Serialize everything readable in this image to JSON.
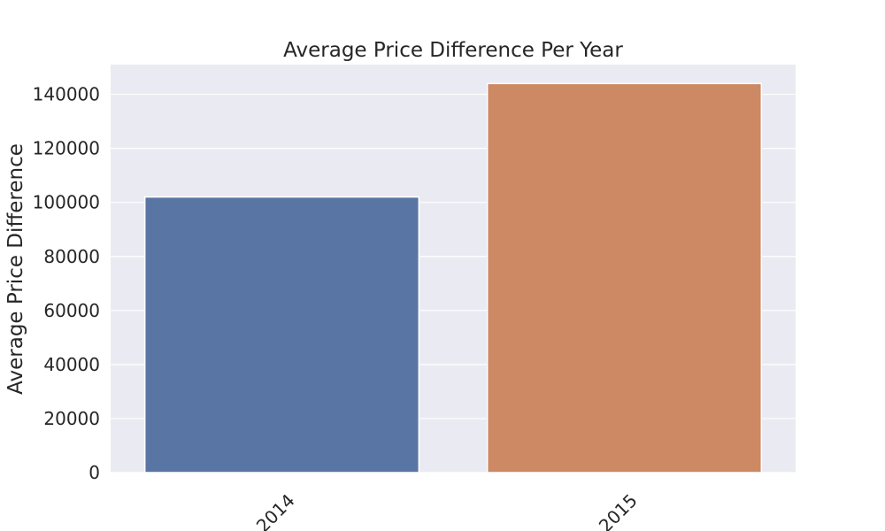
{
  "chart_data": {
    "type": "bar",
    "title": "Average Price Difference Per Year",
    "xlabel": "",
    "ylabel": "Average Price Difference",
    "categories": [
      "2014",
      "2015"
    ],
    "values": [
      102000,
      144000
    ],
    "colors": [
      "#5975a4",
      "#cc8963"
    ],
    "ylim": [
      0,
      151000
    ],
    "yticks": [
      0,
      20000,
      40000,
      60000,
      80000,
      100000,
      120000,
      140000
    ],
    "ytick_labels": [
      "0",
      "20000",
      "40000",
      "60000",
      "80000",
      "100000",
      "120000",
      "140000"
    ],
    "grid": true,
    "background": "#eaeaf2"
  }
}
